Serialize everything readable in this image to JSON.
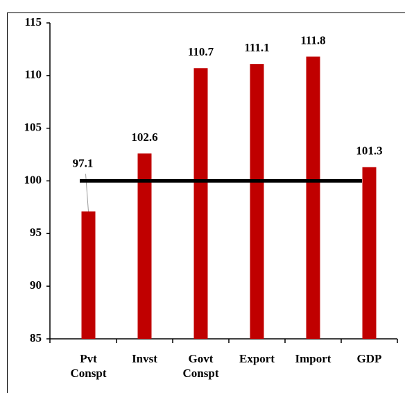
{
  "chart_data": {
    "type": "bar",
    "categories": [
      "Pvt Conspt",
      "Invst",
      "Govt Conspt",
      "Export",
      "Import",
      "GDP"
    ],
    "values": [
      97.1,
      102.6,
      110.7,
      111.1,
      111.8,
      101.3
    ],
    "color": "#c00000",
    "reference_line": 100,
    "ylim": [
      85,
      115
    ],
    "yticks": [
      85,
      90,
      95,
      100,
      105,
      110,
      115
    ],
    "grid": false
  }
}
